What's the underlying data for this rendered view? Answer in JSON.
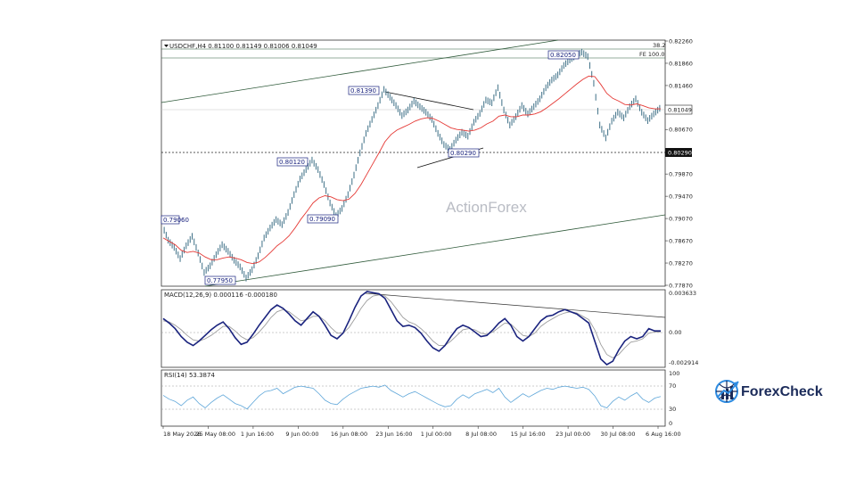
{
  "chart_data": [
    {
      "type": "candlestick",
      "symbol_header": "USDCHF,H4  0.81100 0.81149 0.81006 0.81049",
      "watermark": "ActionForex",
      "ylim": [
        0.7787,
        0.8226
      ],
      "yticks": [
        "0.82260",
        "0.81860",
        "0.81460",
        "0.80670",
        "0.79870",
        "0.79470",
        "0.79070",
        "0.78670",
        "0.78270",
        "0.77870"
      ],
      "xticks": [
        "18 May 2026",
        "25 May 08:00",
        "1 Jun 16:00",
        "9 Jun 00:00",
        "16 Jun 08:00",
        "23 Jun 16:00",
        "1 Jul 00:00",
        "8 Jul 08:00",
        "15 Jul 16:00",
        "23 Jul 00:00",
        "30 Jul 08:00",
        "6 Aug 16:00"
      ],
      "current_price": "0.81049",
      "support_level": "0.80290",
      "fib_labels": [
        "38.2",
        "FE 100.0"
      ],
      "close_series": [
        0.7895,
        0.7868,
        0.7855,
        0.7835,
        0.7858,
        0.7875,
        0.7845,
        0.781,
        0.7822,
        0.7842,
        0.786,
        0.7848,
        0.7832,
        0.782,
        0.78,
        0.7815,
        0.784,
        0.7872,
        0.789,
        0.7905,
        0.7896,
        0.7918,
        0.795,
        0.7978,
        0.7995,
        0.8012,
        0.7995,
        0.7968,
        0.7935,
        0.7912,
        0.7925,
        0.795,
        0.7985,
        0.8025,
        0.806,
        0.8085,
        0.811,
        0.8139,
        0.8125,
        0.811,
        0.8092,
        0.8102,
        0.8118,
        0.8108,
        0.8098,
        0.8085,
        0.806,
        0.804,
        0.8031,
        0.8048,
        0.8062,
        0.8055,
        0.808,
        0.8096,
        0.812,
        0.8115,
        0.8142,
        0.8102,
        0.8075,
        0.809,
        0.811,
        0.8095,
        0.8108,
        0.8122,
        0.8142,
        0.8156,
        0.8165,
        0.8182,
        0.8192,
        0.82,
        0.8206,
        0.8198,
        0.815,
        0.8075,
        0.8052,
        0.8082,
        0.8098,
        0.8088,
        0.8108,
        0.8122,
        0.8098,
        0.8083,
        0.8095,
        0.8105
      ],
      "ma_series": [
        0.7872,
        0.7866,
        0.786,
        0.785,
        0.7846,
        0.7848,
        0.7845,
        0.7838,
        0.7833,
        0.7833,
        0.7836,
        0.7838,
        0.7836,
        0.7833,
        0.7828,
        0.7826,
        0.7829,
        0.7837,
        0.7847,
        0.7858,
        0.7866,
        0.7876,
        0.789,
        0.7906,
        0.792,
        0.7935,
        0.7944,
        0.7948,
        0.7946,
        0.7941,
        0.7939,
        0.7942,
        0.7952,
        0.7968,
        0.7987,
        0.8006,
        0.8025,
        0.8045,
        0.8058,
        0.8066,
        0.8071,
        0.8076,
        0.8082,
        0.8086,
        0.8088,
        0.8087,
        0.8082,
        0.8076,
        0.807,
        0.8067,
        0.8066,
        0.8064,
        0.8066,
        0.807,
        0.8077,
        0.8082,
        0.8091,
        0.8093,
        0.809,
        0.809,
        0.8093,
        0.8093,
        0.8095,
        0.8099,
        0.8106,
        0.8114,
        0.8122,
        0.8131,
        0.814,
        0.8149,
        0.8157,
        0.8163,
        0.8162,
        0.8148,
        0.8132,
        0.8123,
        0.8118,
        0.8112,
        0.8111,
        0.8113,
        0.811,
        0.8106,
        0.8104,
        0.8104
      ]
    },
    {
      "type": "line",
      "label": "MACD(12,26,9) 0.000116 -0.000180",
      "yticks": [
        "0.003633",
        "0.00",
        "-0.002914"
      ],
      "ylim": [
        -0.0029,
        0.0036
      ],
      "macd": [
        0.0012,
        0.0008,
        0.0003,
        -0.0004,
        -0.0009,
        -0.0012,
        -0.0008,
        -0.0003,
        0.0002,
        0.0006,
        0.0009,
        0.0003,
        -0.0005,
        -0.0011,
        -0.0009,
        -0.0002,
        0.0006,
        0.0013,
        0.002,
        0.0024,
        0.0021,
        0.0016,
        0.001,
        0.0006,
        0.0012,
        0.0018,
        0.0014,
        0.0006,
        -0.0003,
        -0.0006,
        -0.0001,
        0.001,
        0.0022,
        0.0032,
        0.0036,
        0.0035,
        0.0034,
        0.003,
        0.002,
        0.001,
        0.0005,
        0.0006,
        0.0004,
        -0.0001,
        -0.0008,
        -0.0014,
        -0.0017,
        -0.0012,
        -0.0004,
        0.0003,
        0.0006,
        0.0004,
        0.0,
        -0.0004,
        -0.0003,
        0.0002,
        0.0008,
        0.0012,
        0.0006,
        -0.0004,
        -0.0008,
        -0.0004,
        0.0003,
        0.001,
        0.0014,
        0.0015,
        0.0018,
        0.002,
        0.0018,
        0.0016,
        0.0012,
        0.0008,
        -0.0008,
        -0.0024,
        -0.0029,
        -0.0026,
        -0.0016,
        -0.0008,
        -0.0004,
        -0.0006,
        -0.0004,
        0.0003,
        0.0001,
        0.0001
      ],
      "signal": [
        0.001,
        0.0009,
        0.0006,
        0.0002,
        -0.0003,
        -0.0007,
        -0.0008,
        -0.0006,
        -0.0003,
        0.0001,
        0.0005,
        0.0005,
        0.0001,
        -0.0004,
        -0.0007,
        -0.0005,
        0.0,
        0.0006,
        0.0013,
        0.0018,
        0.002,
        0.0018,
        0.0014,
        0.001,
        0.0011,
        0.0014,
        0.0014,
        0.001,
        0.0004,
        -0.0001,
        -0.0001,
        0.0004,
        0.0012,
        0.0021,
        0.0028,
        0.0032,
        0.0033,
        0.0032,
        0.0027,
        0.002,
        0.0013,
        0.0009,
        0.0007,
        0.0003,
        -0.0002,
        -0.0008,
        -0.0012,
        -0.0012,
        -0.0008,
        -0.0003,
        0.0002,
        0.0003,
        0.0002,
        -0.0001,
        -0.0002,
        0.0,
        0.0004,
        0.0008,
        0.0007,
        0.0002,
        -0.0003,
        -0.0004,
        -0.0001,
        0.0005,
        0.0009,
        0.0012,
        0.0015,
        0.0017,
        0.0018,
        0.0017,
        0.0014,
        0.0011,
        0.0002,
        -0.0011,
        -0.002,
        -0.0023,
        -0.002,
        -0.0014,
        -0.0009,
        -0.0008,
        -0.0006,
        -0.0001,
        0.0,
        0.0
      ]
    },
    {
      "type": "line",
      "label": "RSI(14) 53.3874",
      "yticks": [
        "100",
        "70",
        "30",
        "0"
      ],
      "ylim": [
        0,
        100
      ],
      "rsi": [
        55,
        48,
        44,
        36,
        46,
        52,
        40,
        32,
        42,
        50,
        56,
        48,
        40,
        36,
        30,
        42,
        54,
        62,
        64,
        68,
        58,
        64,
        70,
        72,
        70,
        68,
        58,
        46,
        40,
        38,
        48,
        56,
        62,
        68,
        70,
        72,
        70,
        74,
        64,
        58,
        52,
        58,
        62,
        56,
        50,
        44,
        38,
        34,
        36,
        48,
        56,
        50,
        58,
        62,
        66,
        60,
        68,
        52,
        42,
        50,
        58,
        52,
        58,
        64,
        68,
        66,
        70,
        72,
        70,
        68,
        70,
        66,
        54,
        36,
        32,
        44,
        52,
        46,
        54,
        60,
        48,
        42,
        50,
        53
      ]
    }
  ],
  "price_labels": [
    "0.79060",
    "0.77950",
    "0.80120",
    "0.79090",
    "0.81390",
    "0.80290",
    "0.82050"
  ],
  "brand": {
    "name": "ForexCheck",
    "blue": "#1b2b5a",
    "accent": "#2e8be0"
  },
  "colors": {
    "candle": "#3d6f86",
    "ma": "#e53935",
    "macd": "#1a237e",
    "signal": "#9e9e9e",
    "rsi": "#5ea6d9",
    "grid": "#000000"
  }
}
